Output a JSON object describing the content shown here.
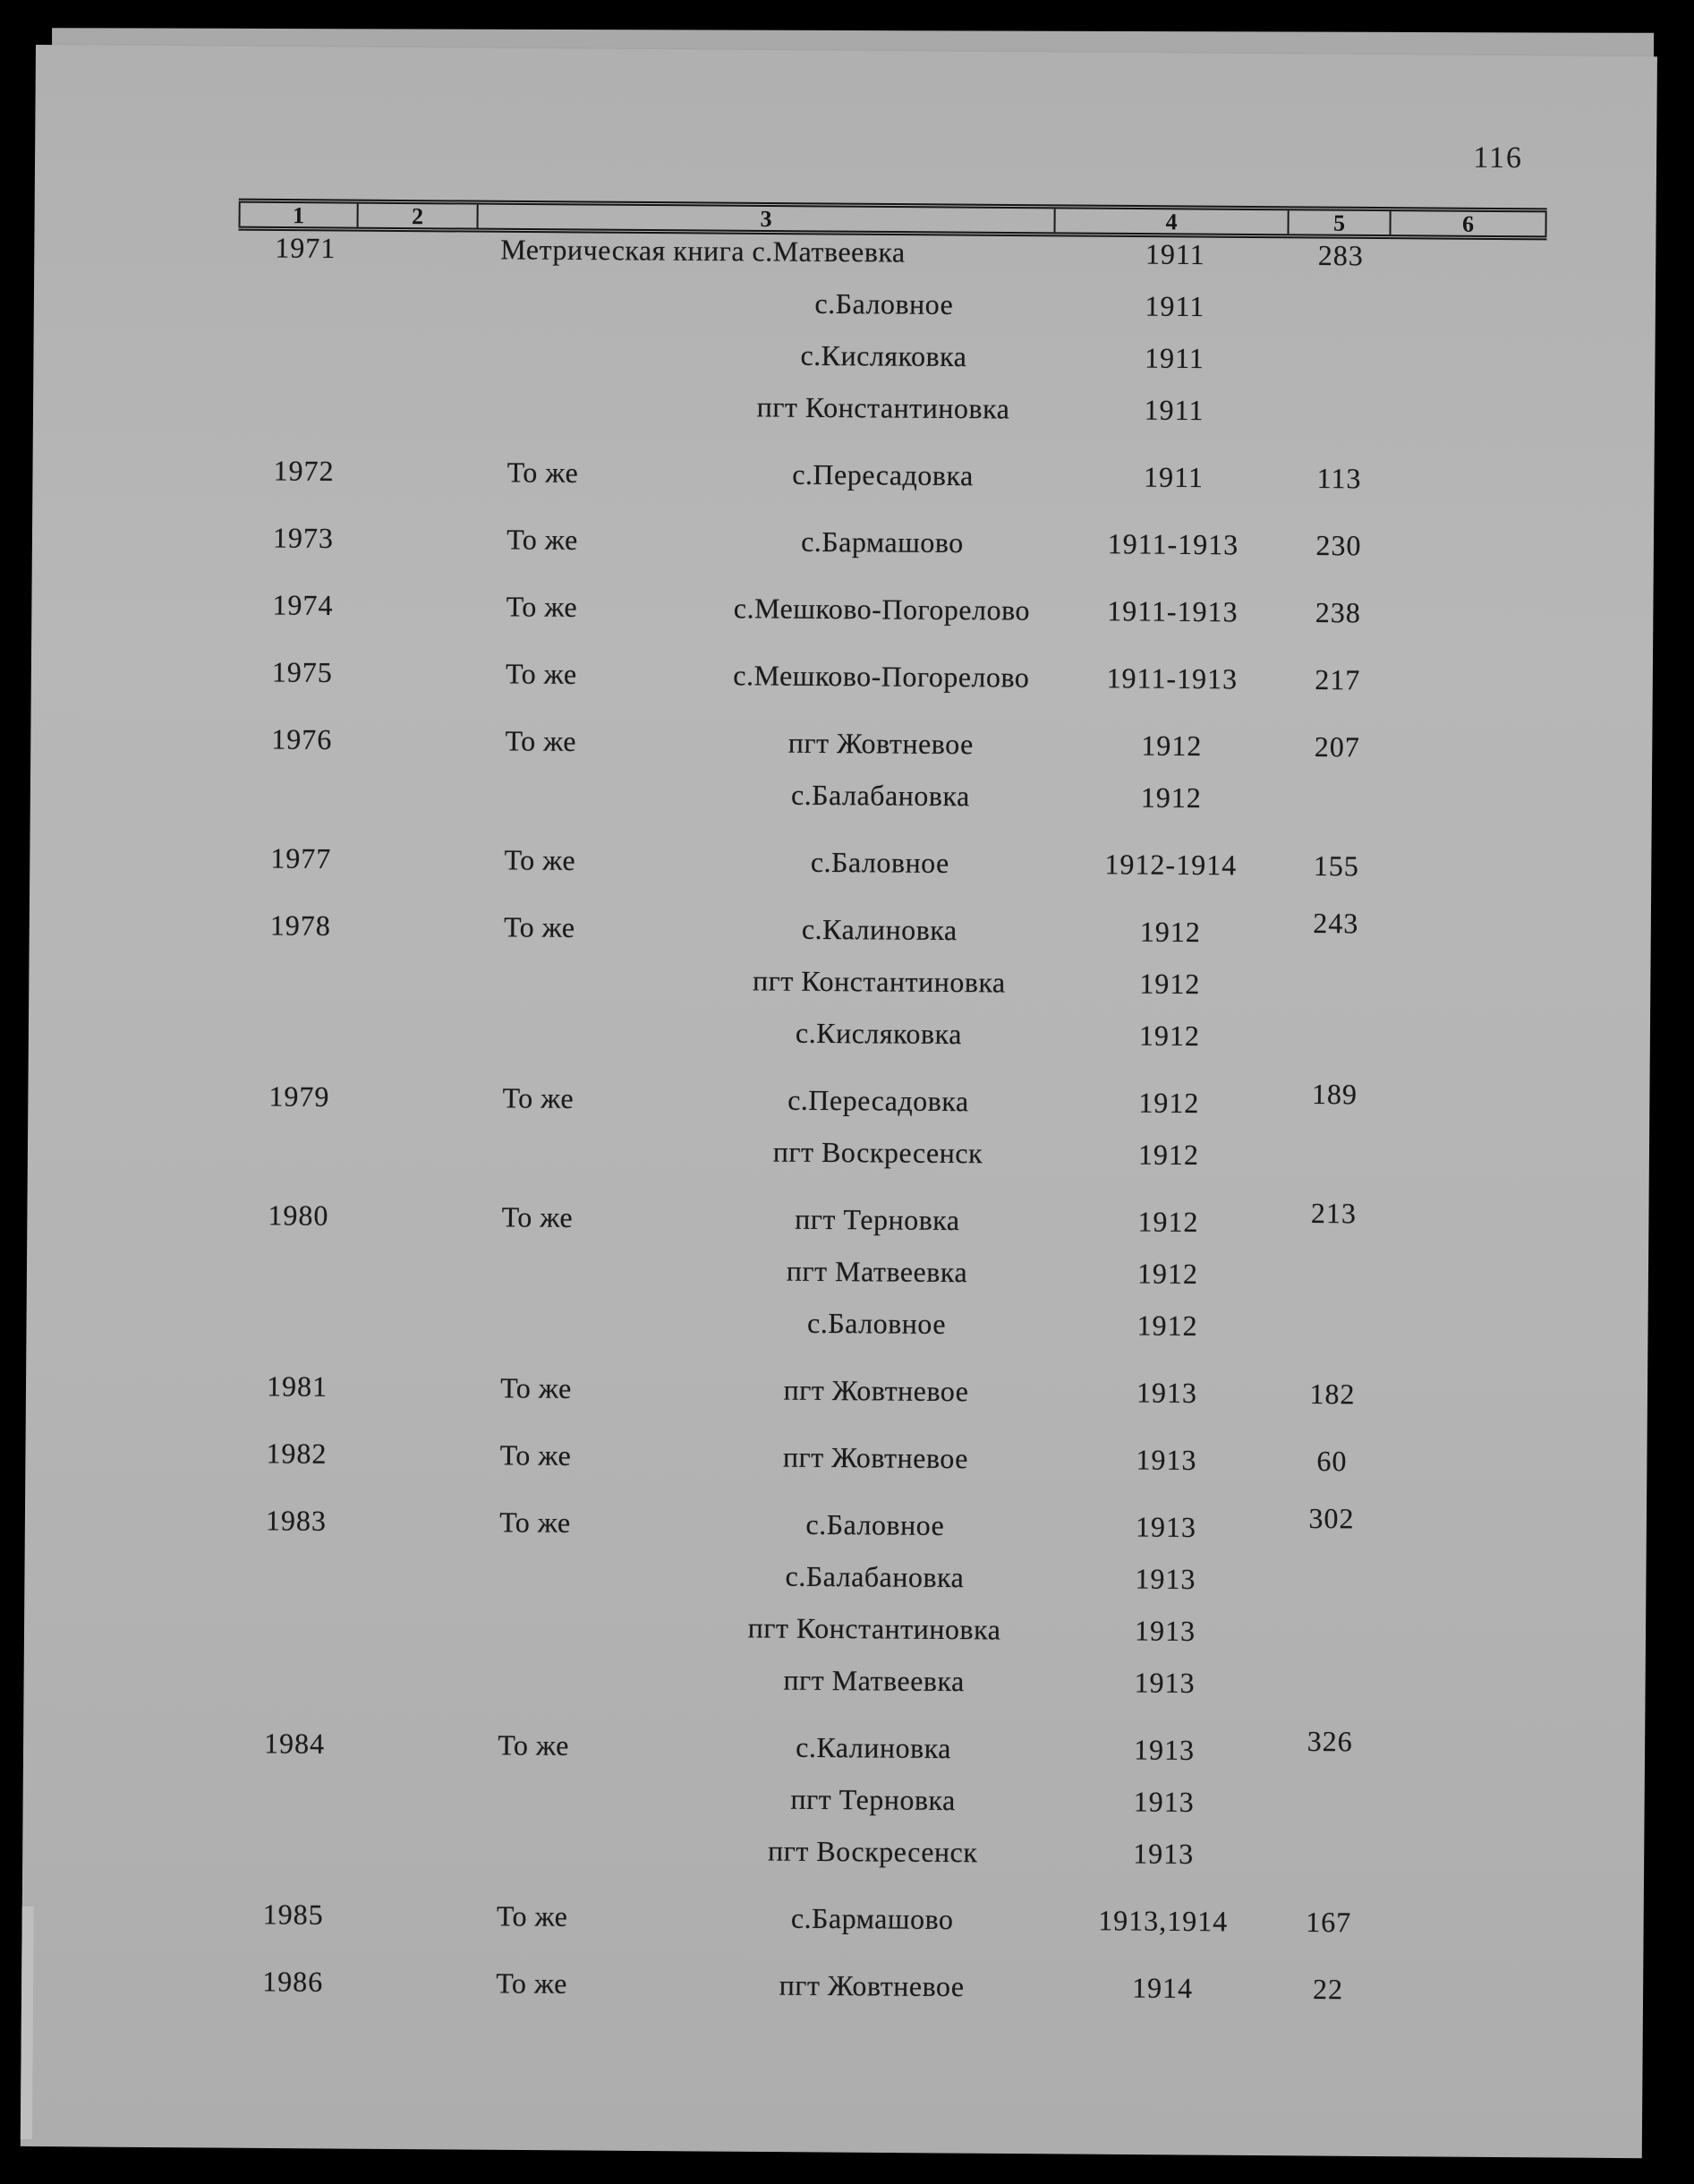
{
  "page": {
    "number": "116"
  },
  "table": {
    "header_cols": [
      "1",
      "2",
      "3",
      "4",
      "5",
      "6"
    ],
    "records": [
      {
        "num": "1971",
        "repeat": "",
        "pages": "283",
        "pages_raised": false,
        "entries": [
          {
            "place": "Метрическая книга с.Матвеевка",
            "year": "1911",
            "align": "left"
          },
          {
            "place": "с.Баловное",
            "year": "1911"
          },
          {
            "place": "с.Кисляковка",
            "year": "1911"
          },
          {
            "place": "пгт Константиновка",
            "year": "1911"
          }
        ]
      },
      {
        "num": "1972",
        "repeat": "То же",
        "pages": "113",
        "pages_raised": false,
        "entries": [
          {
            "place": "с.Пересадовка",
            "year": "1911"
          }
        ]
      },
      {
        "num": "1973",
        "repeat": "То же",
        "pages": "230",
        "pages_raised": false,
        "entries": [
          {
            "place": "с.Бармашово",
            "year": "1911-1913"
          }
        ]
      },
      {
        "num": "1974",
        "repeat": "То же",
        "pages": "238",
        "pages_raised": false,
        "entries": [
          {
            "place": "с.Мешково-Погорелово",
            "year": "1911-1913"
          }
        ]
      },
      {
        "num": "1975",
        "repeat": "То же",
        "pages": "217",
        "pages_raised": false,
        "entries": [
          {
            "place": "с.Мешково-Погорелово",
            "year": "1911-1913"
          }
        ]
      },
      {
        "num": "1976",
        "repeat": "То же",
        "pages": "207",
        "pages_raised": false,
        "entries": [
          {
            "place": "пгт Жовтневое",
            "year": "1912"
          },
          {
            "place": "с.Балабановка",
            "year": "1912"
          }
        ]
      },
      {
        "num": "1977",
        "repeat": "То же",
        "pages": "155",
        "pages_raised": false,
        "entries": [
          {
            "place": "с.Баловное",
            "year": "1912-1914"
          }
        ]
      },
      {
        "num": "1978",
        "repeat": "То же",
        "pages": "243",
        "pages_raised": true,
        "entries": [
          {
            "place": "с.Калиновка",
            "year": "1912"
          },
          {
            "place": "пгт Константиновка",
            "year": "1912"
          },
          {
            "place": "с.Кисляковка",
            "year": "1912"
          }
        ]
      },
      {
        "num": "1979",
        "repeat": "То же",
        "pages": "189",
        "pages_raised": true,
        "entries": [
          {
            "place": "с.Пересадовка",
            "year": "1912"
          },
          {
            "place": "пгт Воскресенск",
            "year": "1912"
          }
        ]
      },
      {
        "num": "1980",
        "repeat": "То же",
        "pages": "213",
        "pages_raised": true,
        "entries": [
          {
            "place": "пгт Терновка",
            "year": "1912"
          },
          {
            "place": "пгт Матвеевка",
            "year": "1912"
          },
          {
            "place": "с.Баловное",
            "year": "1912"
          }
        ]
      },
      {
        "num": "1981",
        "repeat": "То же",
        "pages": "182",
        "pages_raised": false,
        "entries": [
          {
            "place": "пгт Жовтневое",
            "year": "1913"
          }
        ]
      },
      {
        "num": "1982",
        "repeat": "То же",
        "pages": "60",
        "pages_raised": false,
        "entries": [
          {
            "place": "пгт Жовтневое",
            "year": "1913"
          }
        ]
      },
      {
        "num": "1983",
        "repeat": "То же",
        "pages": "302",
        "pages_raised": true,
        "entries": [
          {
            "place": "с.Баловное",
            "year": "1913"
          },
          {
            "place": "с.Балабановка",
            "year": "1913"
          },
          {
            "place": "пгт Константиновка",
            "year": "1913"
          },
          {
            "place": "пгт Матвеевка",
            "year": "1913"
          }
        ]
      },
      {
        "num": "1984",
        "repeat": "То же",
        "pages": "326",
        "pages_raised": true,
        "entries": [
          {
            "place": "с.Калиновка",
            "year": "1913"
          },
          {
            "place": "пгт Терновка",
            "year": "1913"
          },
          {
            "place": "пгт Воскресенск",
            "year": "1913"
          }
        ]
      },
      {
        "num": "1985",
        "repeat": "То же",
        "pages": "167",
        "pages_raised": false,
        "entries": [
          {
            "place": "с.Бармашово",
            "year": "1913,1914"
          }
        ]
      },
      {
        "num": "1986",
        "repeat": "То же",
        "pages": "22",
        "pages_raised": false,
        "entries": [
          {
            "place": "пгт Жовтневое",
            "year": "1914"
          }
        ]
      }
    ]
  }
}
